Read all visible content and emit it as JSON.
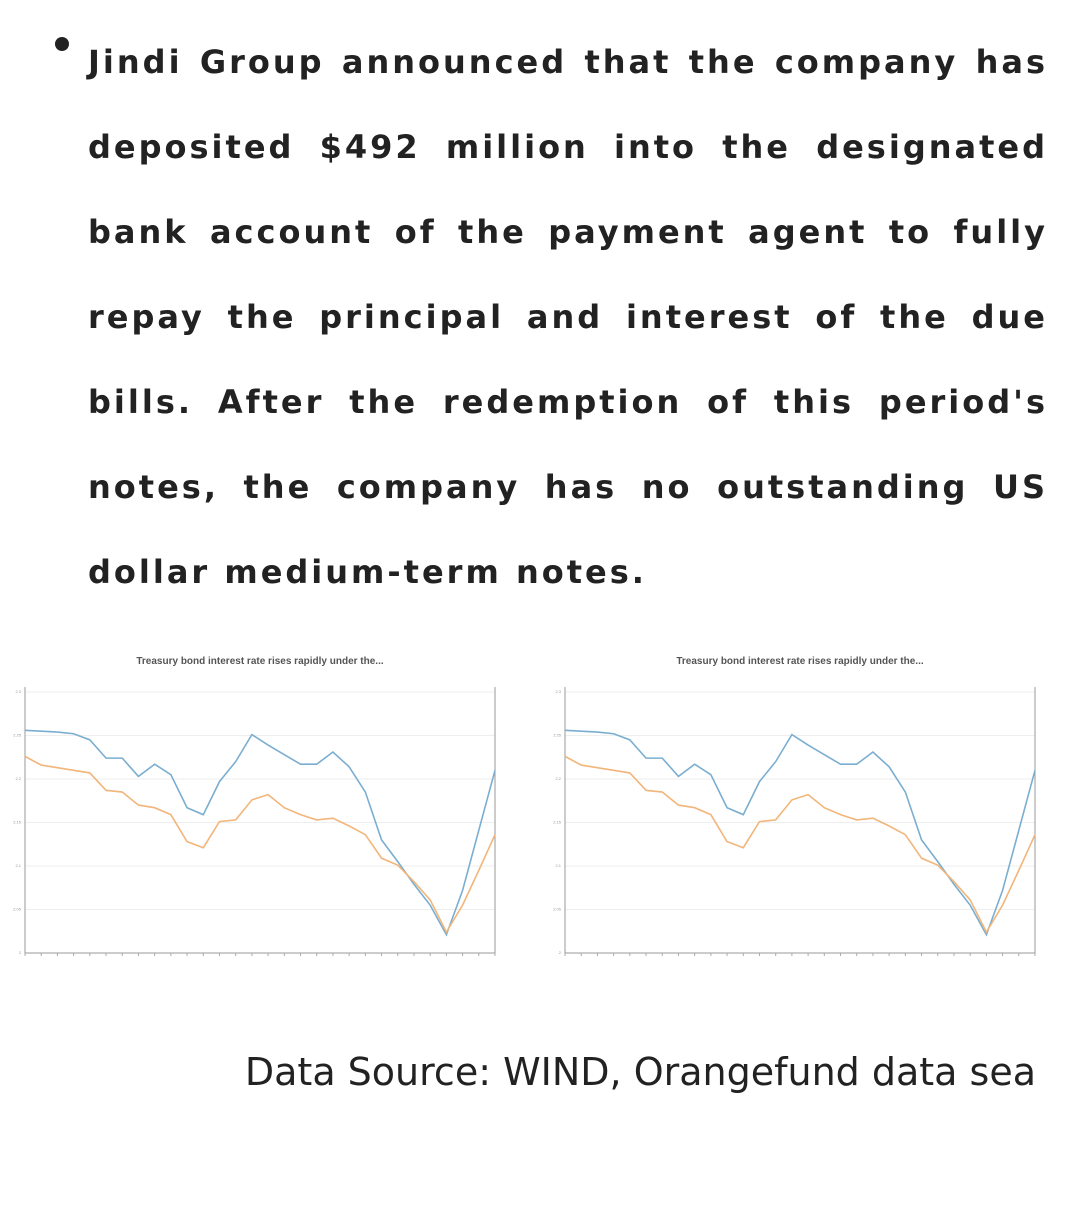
{
  "bullet": "Jindi Group announced that the company has deposited $492 million into the designated bank account of the payment agent to fully repay the principal and interest of the due bills. After the redemption of this period's notes, the company has no outstanding US dollar medium-term notes.",
  "charts": [
    {
      "type": "line",
      "title": "Treasury bond interest rate rises rapidly under the...",
      "categories": [
        null,
        null,
        null,
        null,
        null,
        null,
        null,
        null,
        null,
        null,
        null,
        null,
        null,
        null,
        null,
        null,
        null,
        null,
        null,
        null,
        null,
        null,
        null,
        null,
        null,
        null,
        null,
        null,
        null,
        null
      ],
      "series": [
        {
          "color": "#7aaed0",
          "values": [
            2.256,
            2.255,
            2.254,
            2.252,
            2.245,
            2.224,
            2.224,
            2.203,
            2.217,
            2.205,
            2.167,
            2.159,
            2.197,
            2.22,
            2.251,
            2.239,
            2.228,
            2.217,
            2.217,
            2.231,
            2.214,
            2.185,
            2.13,
            2.105,
            2.079,
            2.055,
            2.021,
            2.072,
            2.141,
            2.21
          ]
        },
        {
          "color": "#f2b57a",
          "values": [
            2.226,
            2.216,
            2.213,
            2.21,
            2.207,
            2.187,
            2.185,
            2.17,
            2.167,
            2.159,
            2.128,
            2.121,
            2.151,
            2.153,
            2.176,
            2.182,
            2.167,
            2.159,
            2.153,
            2.155,
            2.146,
            2.136,
            2.109,
            2.101,
            2.082,
            2.061,
            2.024,
            2.055,
            2.095,
            2.136
          ]
        }
      ],
      "ylim": [
        2,
        2.3
      ],
      "yticks": [
        2,
        2.05,
        2.1,
        2.15,
        2.2,
        2.25,
        2.3
      ],
      "grid": true
    },
    {
      "type": "line",
      "title": "Treasury bond interest rate rises rapidly under the...",
      "categories": [
        null,
        null,
        null,
        null,
        null,
        null,
        null,
        null,
        null,
        null,
        null,
        null,
        null,
        null,
        null,
        null,
        null,
        null,
        null,
        null,
        null,
        null,
        null,
        null,
        null,
        null,
        null,
        null,
        null,
        null
      ],
      "series": [
        {
          "color": "#7aaed0",
          "values": [
            2.256,
            2.255,
            2.254,
            2.252,
            2.245,
            2.224,
            2.224,
            2.203,
            2.217,
            2.205,
            2.167,
            2.159,
            2.197,
            2.22,
            2.251,
            2.239,
            2.228,
            2.217,
            2.217,
            2.231,
            2.214,
            2.185,
            2.13,
            2.105,
            2.079,
            2.055,
            2.021,
            2.072,
            2.141,
            2.21
          ]
        },
        {
          "color": "#f2b57a",
          "values": [
            2.226,
            2.216,
            2.213,
            2.21,
            2.207,
            2.187,
            2.185,
            2.17,
            2.167,
            2.159,
            2.128,
            2.121,
            2.151,
            2.153,
            2.176,
            2.182,
            2.167,
            2.159,
            2.153,
            2.155,
            2.146,
            2.136,
            2.109,
            2.101,
            2.082,
            2.061,
            2.024,
            2.055,
            2.095,
            2.136
          ]
        }
      ],
      "ylim": [
        2,
        2.3
      ],
      "yticks": [
        2,
        2.05,
        2.1,
        2.15,
        2.2,
        2.25,
        2.3
      ],
      "grid": true
    }
  ],
  "source": "Data Source: WIND, Orangefund data sea"
}
